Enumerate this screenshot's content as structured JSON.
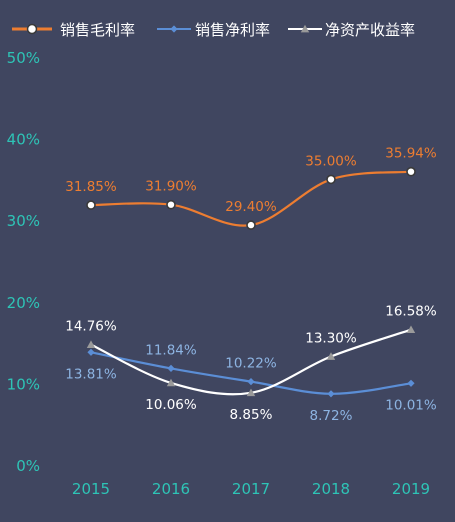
{
  "chart_data": {
    "type": "line",
    "categories": [
      "2015",
      "2016",
      "2017",
      "2018",
      "2019"
    ],
    "ylim": [
      0,
      50
    ],
    "yticks": [
      "0%",
      "10%",
      "20%",
      "30%",
      "40%",
      "50%"
    ],
    "yticks_values": [
      0,
      10,
      20,
      30,
      40,
      50
    ],
    "grid": false,
    "legend_position": "top",
    "series": [
      {
        "name": "销售毛利率",
        "values": [
          31.85,
          31.9,
          29.4,
          35.0,
          35.94
        ],
        "labels": [
          "31.85%",
          "31.90%",
          "29.40%",
          "35.00%",
          "35.94%"
        ],
        "label_pos": [
          "above",
          "above",
          "above",
          "above",
          "above"
        ],
        "color": "#ED7D31",
        "label_color": "#ED7D31",
        "marker": "circle"
      },
      {
        "name": "销售净利率",
        "values": [
          13.81,
          11.84,
          10.22,
          8.72,
          10.01
        ],
        "labels": [
          "13.81%",
          "11.84%",
          "10.22%",
          "8.72%",
          "10.01%"
        ],
        "label_pos": [
          "below",
          "above",
          "above",
          "below",
          "below"
        ],
        "color": "#5B8ED6",
        "label_color": "#8DB4E2",
        "marker": "diamond"
      },
      {
        "name": "净资产收益率",
        "values": [
          14.76,
          10.06,
          8.85,
          13.3,
          16.58
        ],
        "labels": [
          "14.76%",
          "10.06%",
          "8.85%",
          "13.30%",
          "16.58%"
        ],
        "label_pos": [
          "above",
          "below",
          "below",
          "above",
          "above"
        ],
        "color": "#FFFFFF",
        "label_color": "#FFFFFF",
        "marker": "triangle"
      }
    ],
    "colors": {
      "background": "#404660",
      "axis_tick_text": "#2EC4B6"
    }
  }
}
